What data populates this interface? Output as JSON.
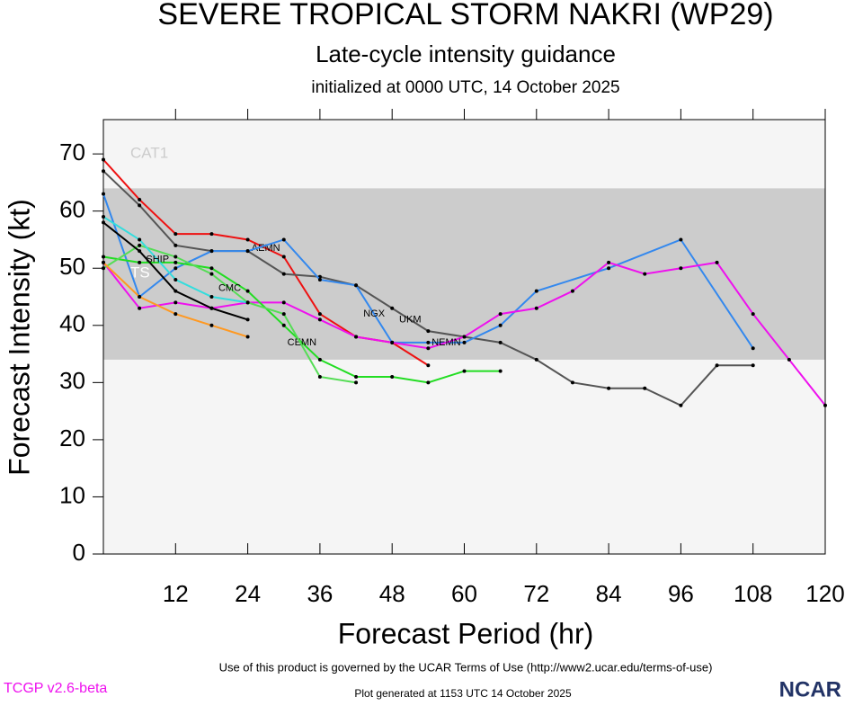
{
  "chart_data": {
    "type": "line",
    "title": "SEVERE TROPICAL STORM NAKRI (WP29)",
    "subtitle": "Late-cycle intensity guidance",
    "subtitle2": "initialized at 0000 UTC, 14 October 2025",
    "x_label": "Forecast Period (hr)",
    "y_label": "Forecast Intensity (kt)",
    "xlim": [
      0,
      120
    ],
    "xticks": [
      12,
      24,
      36,
      48,
      60,
      72,
      84,
      96,
      108,
      120
    ],
    "ylim": [
      0,
      76
    ],
    "yticks": [
      0,
      10,
      20,
      30,
      40,
      50,
      60,
      70
    ],
    "bands": [
      {
        "label": "TS",
        "from": 34,
        "to": 64,
        "color": "#cccccc"
      },
      {
        "label": "CAT1",
        "from": 64,
        "to": 76,
        "color": "#f5f5f5"
      }
    ],
    "series": [
      {
        "name": "AEMN",
        "color": "#ee1111",
        "x": [
          0,
          6,
          12,
          18,
          24,
          30,
          36,
          42,
          48,
          54
        ],
        "values": [
          69,
          62,
          56,
          56,
          55,
          52,
          42,
          38,
          37,
          33
        ]
      },
      {
        "name": "UKM",
        "color": "#555555",
        "x": [
          0,
          6,
          12,
          18,
          24,
          30,
          36,
          42,
          48,
          54,
          60,
          66,
          72,
          78,
          84,
          90,
          96,
          102,
          108
        ],
        "values": [
          67,
          61,
          54,
          53,
          53,
          49,
          48.5,
          47,
          43,
          39,
          38,
          37,
          34,
          30,
          29,
          29,
          26,
          33,
          33
        ]
      },
      {
        "name": "NGX",
        "color": "#3388ee",
        "x": [
          0,
          6,
          12,
          18,
          24,
          30,
          36,
          42,
          48,
          54,
          60,
          66,
          72,
          84,
          96,
          108
        ],
        "values": [
          63,
          45,
          50,
          53,
          53,
          55,
          48,
          47,
          37,
          37,
          37,
          40,
          46,
          50,
          55,
          36
        ]
      },
      {
        "name": "NEMN",
        "color": "#ee11ee",
        "x": [
          0,
          6,
          12,
          18,
          24,
          30,
          36,
          42,
          48,
          54,
          60,
          66,
          72,
          78,
          84,
          90,
          96,
          102,
          108,
          114,
          120
        ],
        "values": [
          51,
          43,
          44,
          43,
          44,
          44,
          41,
          38,
          37,
          36,
          38,
          42,
          43,
          46,
          51,
          49,
          50,
          51,
          42,
          34,
          26
        ]
      },
      {
        "name": "CEMN",
        "color": "#22dd22",
        "x": [
          0,
          6,
          12,
          18,
          24,
          30,
          36,
          42,
          48,
          54,
          60,
          66
        ],
        "values": [
          52,
          51,
          51,
          50,
          46,
          40,
          34,
          31,
          31,
          30,
          32,
          32
        ]
      },
      {
        "name": "CMC",
        "color": "#55dd55",
        "x": [
          0,
          6,
          12,
          18,
          24,
          30,
          36,
          42
        ],
        "values": [
          50,
          54,
          52,
          49,
          44,
          42,
          31,
          30
        ]
      },
      {
        "name": "SHIP",
        "color": "#33dddd",
        "x": [
          0,
          6,
          12,
          18,
          24
        ],
        "values": [
          59,
          55,
          48,
          45,
          44
        ]
      },
      {
        "color": "#000000",
        "x": [
          0,
          6,
          12,
          18,
          24
        ],
        "values": [
          58,
          53,
          46,
          43,
          41
        ]
      },
      {
        "color": "#ff9922",
        "x": [
          0,
          6,
          12,
          18,
          24
        ],
        "values": [
          51,
          45,
          42,
          40,
          38
        ]
      }
    ],
    "footer": "Use of this product is governed by the UCAR Terms of Use (http://www2.ucar.edu/terms-of-use)",
    "version": "TCGP v2.6-beta",
    "generated": "Plot generated at 1153 UTC   14 October 2025",
    "logo": "NCAR"
  }
}
